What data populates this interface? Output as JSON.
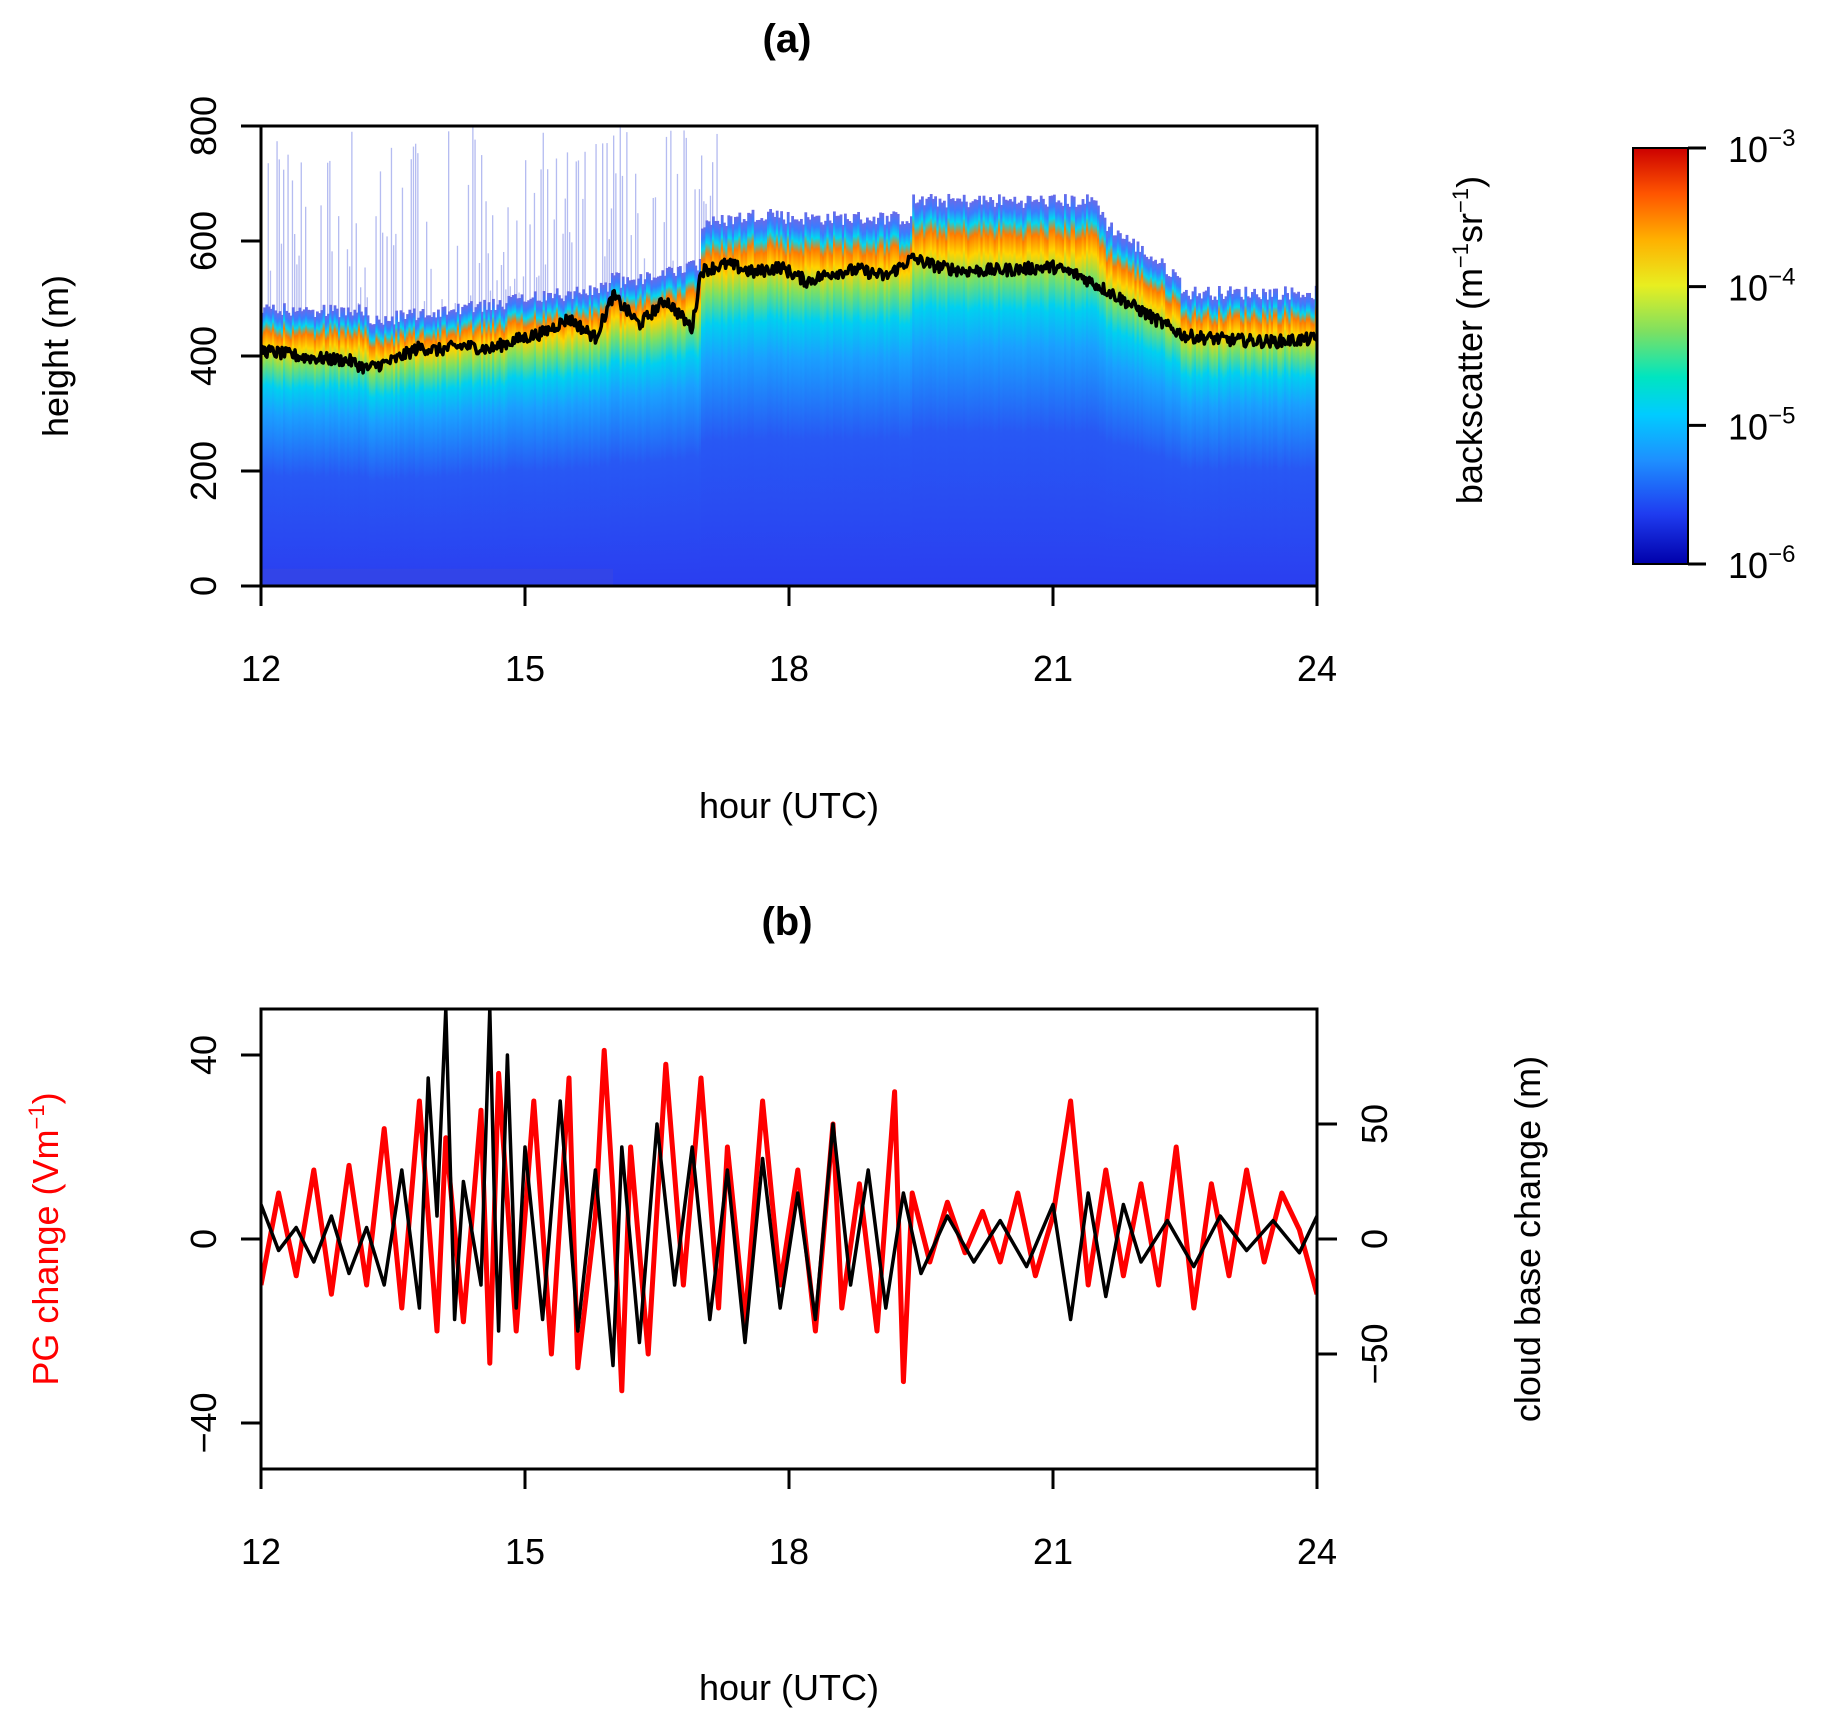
{
  "chart_data": [
    {
      "panel": "(a)",
      "type": "heatmap",
      "title": "(a)",
      "xlabel": "hour (UTC)",
      "ylabel": "height (m)",
      "colorbar_label": "backscatter (m⁻¹sr⁻¹)",
      "colorbar_label_parts": {
        "base": "backscatter (m",
        "sup1": "−1",
        "mid": "sr",
        "sup2": "−1",
        "end": ")"
      },
      "x_ticks": [
        12,
        15,
        18,
        21,
        24
      ],
      "y_ticks": [
        0,
        200,
        400,
        600,
        800
      ],
      "xlim": [
        12,
        24
      ],
      "ylim": [
        0,
        800
      ],
      "color_scale": "log",
      "color_range": [
        1e-06,
        0.001
      ],
      "colorbar_ticks": [
        {
          "value": 0.001,
          "base": "10",
          "exp": "−3"
        },
        {
          "value": 0.0001,
          "base": "10",
          "exp": "−4"
        },
        {
          "value": 1e-05,
          "base": "10",
          "exp": "−5"
        },
        {
          "value": 1e-06,
          "base": "10",
          "exp": "−6"
        }
      ],
      "colormap": [
        "#0000aa",
        "#1f3cf0",
        "#1e90ff",
        "#00ccff",
        "#00e5c0",
        "#7fe060",
        "#e8ee20",
        "#ffb000",
        "#ff5500",
        "#cc0000"
      ],
      "cloud_base_line_color": "#000000",
      "cloud_base_hours": [
        12.0,
        12.5,
        13.0,
        13.2,
        13.5,
        13.8,
        14.0,
        14.3,
        14.6,
        14.9,
        15.2,
        15.5,
        15.8,
        16.0,
        16.3,
        16.6,
        16.9,
        17.0,
        17.3,
        17.6,
        17.9,
        18.2,
        18.5,
        18.8,
        19.1,
        19.4,
        19.7,
        20.0,
        20.5,
        21.0,
        21.3,
        21.6,
        21.9,
        22.2,
        22.5,
        23.0,
        23.5,
        24.0
      ],
      "cloud_base_heights": [
        410,
        398,
        392,
        378,
        392,
        415,
        410,
        418,
        412,
        428,
        440,
        465,
        432,
        505,
        455,
        498,
        448,
        548,
        560,
        545,
        555,
        530,
        545,
        550,
        538,
        570,
        555,
        548,
        550,
        555,
        540,
        515,
        488,
        460,
        435,
        428,
        425,
        430
      ],
      "cloud_top_hours": [
        12.0,
        13.2,
        13.21,
        16.0,
        17.0,
        17.01,
        17.8,
        18.0,
        19.39,
        19.4,
        21.5,
        21.6,
        22.4,
        22.5,
        24.0
      ],
      "cloud_top_heights": [
        480,
        480,
        460,
        520,
        560,
        630,
        650,
        640,
        640,
        670,
        670,
        630,
        540,
        510,
        510
      ]
    },
    {
      "panel": "(b)",
      "type": "line",
      "title": "(b)",
      "xlabel": "hour (UTC)",
      "ylabel_left": "PG change (Vm⁻¹)",
      "ylabel_left_parts": {
        "base": "PG change (Vm",
        "sup": "−1",
        "end": ")"
      },
      "ylabel_right": "cloud base change (m)",
      "x_ticks": [
        12,
        15,
        18,
        21,
        24
      ],
      "y_ticks_left": [
        -40,
        0,
        40
      ],
      "y_ticks_right": [
        -50,
        0,
        50
      ],
      "xlim": [
        12,
        24
      ],
      "ylim_left": [
        -50,
        50
      ],
      "ylim_right": [
        -100,
        100
      ],
      "series": [
        {
          "name": "PG change",
          "axis": "left",
          "color": "#ff0000",
          "x": [
            12.0,
            12.2,
            12.4,
            12.6,
            12.8,
            13.0,
            13.2,
            13.4,
            13.6,
            13.8,
            14.0,
            14.1,
            14.3,
            14.5,
            14.6,
            14.7,
            14.9,
            15.1,
            15.3,
            15.5,
            15.6,
            15.8,
            15.9,
            16.0,
            16.1,
            16.2,
            16.4,
            16.6,
            16.8,
            17.0,
            17.2,
            17.3,
            17.5,
            17.7,
            17.9,
            18.1,
            18.3,
            18.5,
            18.6,
            18.8,
            19.0,
            19.2,
            19.3,
            19.4,
            19.6,
            19.8,
            20.0,
            20.2,
            20.4,
            20.6,
            20.8,
            21.0,
            21.2,
            21.4,
            21.6,
            21.8,
            22.0,
            22.2,
            22.4,
            22.6,
            22.8,
            23.0,
            23.2,
            23.4,
            23.6,
            23.8,
            24.0
          ],
          "values": [
            -10,
            10,
            -8,
            15,
            -12,
            16,
            -10,
            24,
            -15,
            30,
            -20,
            22,
            -18,
            28,
            -27,
            36,
            -20,
            30,
            -25,
            35,
            -28,
            5,
            41,
            10,
            -33,
            20,
            -25,
            38,
            -10,
            35,
            -15,
            20,
            -18,
            30,
            -10,
            15,
            -20,
            25,
            -15,
            12,
            -20,
            32,
            -31,
            10,
            -5,
            8,
            -3,
            6,
            -5,
            10,
            -8,
            5,
            30,
            -10,
            15,
            -8,
            12,
            -10,
            20,
            -15,
            12,
            -8,
            15,
            -5,
            10,
            2,
            -12
          ]
        },
        {
          "name": "cloud base change",
          "axis": "right",
          "color": "#000000",
          "x": [
            12.0,
            12.2,
            12.4,
            12.6,
            12.8,
            13.0,
            13.2,
            13.4,
            13.6,
            13.8,
            13.9,
            14.0,
            14.1,
            14.2,
            14.3,
            14.5,
            14.6,
            14.65,
            14.7,
            14.8,
            14.9,
            15.0,
            15.2,
            15.4,
            15.6,
            15.8,
            16.0,
            16.1,
            16.3,
            16.5,
            16.7,
            16.9,
            17.1,
            17.3,
            17.5,
            17.7,
            17.9,
            18.1,
            18.3,
            18.5,
            18.7,
            18.9,
            19.1,
            19.3,
            19.5,
            19.8,
            20.1,
            20.4,
            20.7,
            21.0,
            21.2,
            21.4,
            21.6,
            21.8,
            22.0,
            22.3,
            22.6,
            22.9,
            23.2,
            23.5,
            23.8,
            24.0
          ],
          "values": [
            15,
            -5,
            5,
            -10,
            10,
            -15,
            5,
            -20,
            30,
            -30,
            70,
            10,
            100,
            -35,
            25,
            -20,
            100,
            20,
            -40,
            80,
            -30,
            40,
            -35,
            60,
            -40,
            30,
            -55,
            40,
            -45,
            50,
            -20,
            40,
            -35,
            30,
            -45,
            35,
            -30,
            20,
            -35,
            50,
            -20,
            30,
            -30,
            20,
            -15,
            10,
            -10,
            8,
            -12,
            15,
            -35,
            20,
            -25,
            15,
            -10,
            8,
            -12,
            10,
            -5,
            8,
            -6,
            10
          ]
        }
      ]
    }
  ]
}
